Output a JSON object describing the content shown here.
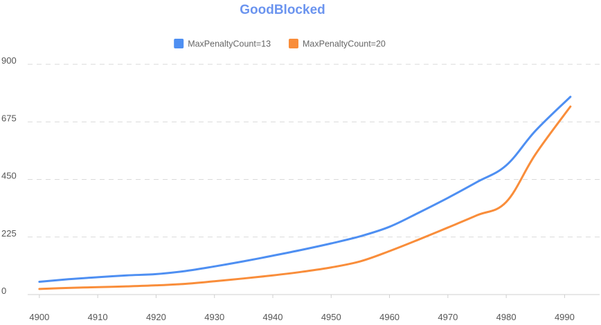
{
  "chart_data": {
    "type": "line",
    "title": "GoodBlocked",
    "xlabel": "",
    "ylabel": "",
    "xlim": [
      4898,
      4996
    ],
    "ylim": [
      0,
      900
    ],
    "x_ticks": [
      "4900",
      "4910",
      "4920",
      "4930",
      "4940",
      "4950",
      "4960",
      "4970",
      "4980",
      "4990"
    ],
    "y_ticks": [
      "0",
      "225",
      "450",
      "675",
      "900"
    ],
    "grid": "horizontal dashed",
    "legend_position": "top",
    "series": [
      {
        "name": "MaxPenaltyCount=13",
        "color": "#4e8ff2",
        "x": [
          4900,
          4905,
          4910,
          4915,
          4920,
          4925,
          4930,
          4935,
          4940,
          4945,
          4950,
          4955,
          4960,
          4965,
          4970,
          4975,
          4980,
          4985,
          4991
        ],
        "y": [
          50,
          60,
          68,
          75,
          80,
          92,
          110,
          130,
          152,
          175,
          200,
          228,
          265,
          320,
          378,
          440,
          505,
          640,
          773
        ]
      },
      {
        "name": "MaxPenaltyCount=20",
        "color": "#f98d3a",
        "x": [
          4900,
          4905,
          4910,
          4915,
          4920,
          4925,
          4930,
          4935,
          4940,
          4945,
          4950,
          4955,
          4960,
          4965,
          4970,
          4975,
          4980,
          4985,
          4991
        ],
        "y": [
          22,
          26,
          29,
          32,
          36,
          42,
          52,
          63,
          75,
          89,
          106,
          130,
          170,
          215,
          262,
          310,
          362,
          548,
          735
        ]
      }
    ]
  }
}
